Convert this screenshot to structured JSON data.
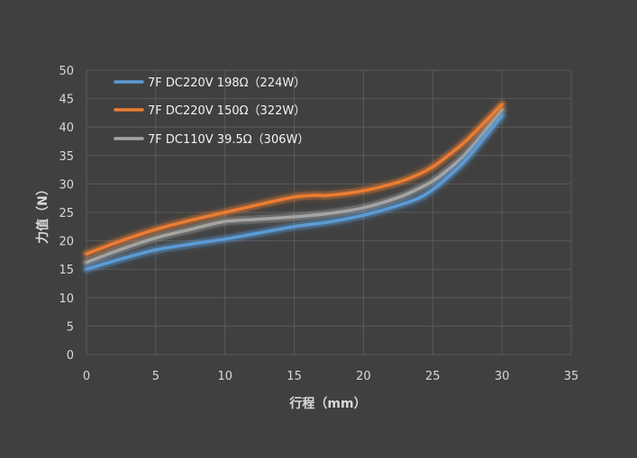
{
  "chart_data": {
    "type": "line",
    "title": "",
    "xlabel": "行程（mm）",
    "ylabel": "力值（N）",
    "xlim": [
      0,
      35
    ],
    "ylim": [
      0,
      50
    ],
    "xticks": [
      0,
      5,
      10,
      15,
      20,
      25,
      30,
      35
    ],
    "yticks": [
      0,
      5,
      10,
      15,
      20,
      25,
      30,
      35,
      40,
      45,
      50
    ],
    "grid": true,
    "legend_position": "top-left",
    "series": [
      {
        "name": "7F  DC220V  198Ω（224W）",
        "color": "#5b9bd5",
        "x": [
          0,
          2.5,
          5,
          7.5,
          10,
          12.5,
          15,
          17.5,
          20,
          22.5,
          24,
          25,
          26,
          27.5,
          30
        ],
        "y": [
          15.0,
          16.8,
          18.4,
          19.4,
          20.3,
          21.4,
          22.5,
          23.3,
          24.5,
          26.2,
          27.5,
          29.0,
          31.0,
          34.5,
          42.0
        ]
      },
      {
        "name": "7F  DC220V  150Ω（322W）",
        "color": "#ed7d31",
        "x": [
          0,
          2.5,
          5,
          7.5,
          10,
          12.5,
          15,
          16.5,
          17.5,
          20,
          22.5,
          24,
          25,
          26,
          27.5,
          30
        ],
        "y": [
          17.7,
          20.0,
          22.0,
          23.6,
          25.0,
          26.4,
          27.7,
          28.0,
          28.0,
          28.8,
          30.3,
          31.7,
          33.0,
          34.8,
          37.8,
          44.0
        ]
      },
      {
        "name": "7F  DC110V  39.5Ω（306W）",
        "color": "#a5a5a5",
        "x": [
          0,
          2.5,
          5,
          7.5,
          10,
          12.5,
          15,
          17.5,
          20,
          22.5,
          24,
          25,
          26,
          27.5,
          30
        ],
        "y": [
          16.2,
          18.5,
          20.5,
          22.0,
          23.4,
          23.8,
          24.2,
          24.8,
          25.8,
          27.6,
          29.2,
          30.5,
          32.3,
          35.6,
          43.0
        ]
      }
    ]
  }
}
